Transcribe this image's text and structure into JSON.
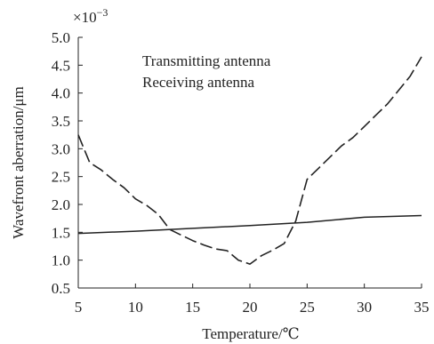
{
  "chart_data": {
    "type": "line",
    "title": "",
    "xlabel": "Temperature/℃",
    "ylabel": "Wavefront aberration/μm",
    "y_multiplier": "×10",
    "y_multiplier_exp": "−3",
    "xlim": [
      5,
      35
    ],
    "ylim": [
      0.5,
      5.0
    ],
    "xticks": [
      5,
      10,
      15,
      20,
      25,
      30,
      35
    ],
    "yticks": [
      0.5,
      1.0,
      1.5,
      2.0,
      2.5,
      3.0,
      3.5,
      4.0,
      4.5,
      5.0
    ],
    "grid": false,
    "legend_position": "top-center",
    "series": [
      {
        "name": "Transmitting antenna",
        "style": "dashed",
        "color": "#222222",
        "x": [
          5,
          6,
          7,
          8,
          9,
          10,
          11,
          12,
          13,
          14,
          15,
          16,
          17,
          18,
          19,
          20,
          21,
          22,
          23,
          24,
          25,
          26,
          27,
          28,
          29,
          30,
          31,
          32,
          33,
          34,
          35
        ],
        "y": [
          3.25,
          2.75,
          2.62,
          2.45,
          2.3,
          2.1,
          1.98,
          1.82,
          1.55,
          1.45,
          1.35,
          1.27,
          1.2,
          1.17,
          1.0,
          0.93,
          1.08,
          1.18,
          1.3,
          1.7,
          2.45,
          2.65,
          2.85,
          3.05,
          3.2,
          3.4,
          3.6,
          3.8,
          4.05,
          4.3,
          4.65
        ]
      },
      {
        "name": "Receiving antenna",
        "style": "solid",
        "color": "#222222",
        "x": [
          5,
          10,
          15,
          20,
          25,
          30,
          35
        ],
        "y": [
          1.48,
          1.52,
          1.57,
          1.62,
          1.68,
          1.77,
          1.8
        ]
      }
    ]
  }
}
